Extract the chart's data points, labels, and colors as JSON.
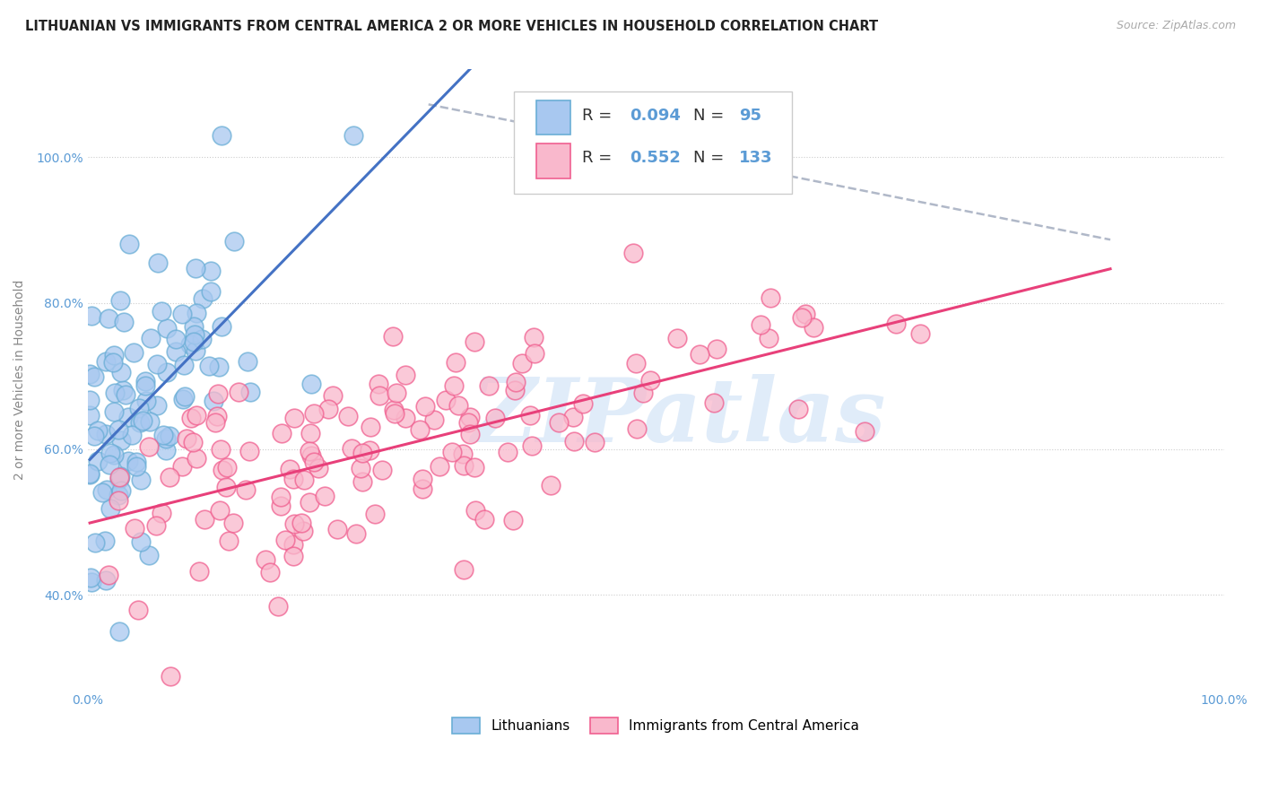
{
  "title": "LITHUANIAN VS IMMIGRANTS FROM CENTRAL AMERICA 2 OR MORE VEHICLES IN HOUSEHOLD CORRELATION CHART",
  "source": "Source: ZipAtlas.com",
  "ylabel": "2 or more Vehicles in Household",
  "R1": 0.094,
  "N1": 95,
  "R2": 0.552,
  "N2": 133,
  "scatter1_color": "#a8c8f0",
  "scatter1_edge": "#6aaed6",
  "scatter2_color": "#f9b8cc",
  "scatter2_edge": "#f06090",
  "trend1_color": "#4472c4",
  "trend2_color": "#e8407a",
  "dashed_color": "#b0b8c8",
  "legend_label1": "Lithuanians",
  "legend_label2": "Immigrants from Central America",
  "background_color": "#ffffff",
  "grid_color": "#cccccc",
  "watermark": "ZIPatlas",
  "watermark_color": "#cce0f5",
  "title_color": "#222222",
  "source_color": "#aaaaaa",
  "tick_color": "#5b9bd5",
  "ylabel_color": "#888888",
  "legend_text_color": "#333333",
  "legend_value_color": "#5b9bd5"
}
